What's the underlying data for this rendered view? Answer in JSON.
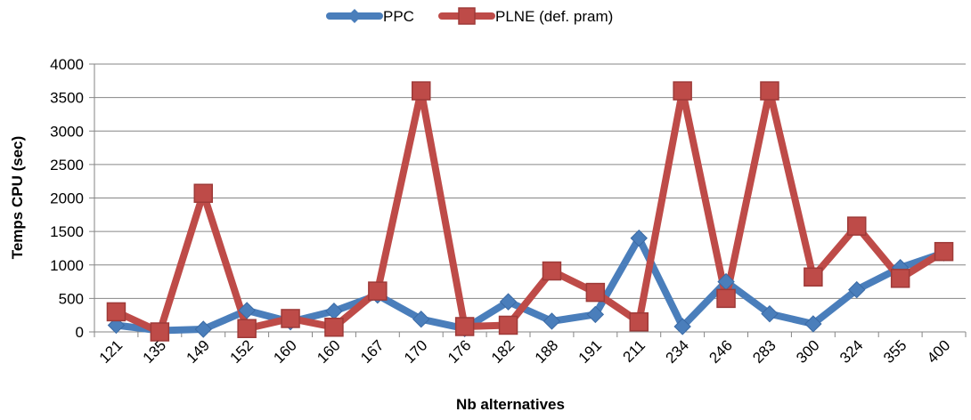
{
  "chart_data": {
    "type": "line",
    "title": "",
    "xlabel": "Nb alternatives",
    "ylabel": "Temps CPU (sec)",
    "categories": [
      "121",
      "135",
      "149",
      "152",
      "160",
      "160",
      "167",
      "170",
      "176",
      "182",
      "188",
      "191",
      "211",
      "234",
      "246",
      "283",
      "300",
      "324",
      "355",
      "400"
    ],
    "ylim": [
      0,
      4000
    ],
    "yticks": [
      0,
      500,
      1000,
      1500,
      2000,
      2500,
      3000,
      3500,
      4000
    ],
    "grid": "horizontal",
    "legend_position": "top",
    "series": [
      {
        "name": "PPC",
        "color": "#4a7ebb",
        "marker": "diamond",
        "values": [
          100,
          20,
          40,
          320,
          150,
          310,
          550,
          190,
          50,
          450,
          160,
          260,
          1400,
          80,
          750,
          270,
          120,
          630,
          960,
          1180
        ]
      },
      {
        "name": "PLNE (def. pram)",
        "color": "#be4b48",
        "marker": "square",
        "values": [
          300,
          0,
          2070,
          50,
          200,
          70,
          610,
          3600,
          80,
          100,
          910,
          590,
          150,
          3600,
          500,
          3600,
          820,
          1580,
          800,
          1200
        ]
      }
    ]
  }
}
